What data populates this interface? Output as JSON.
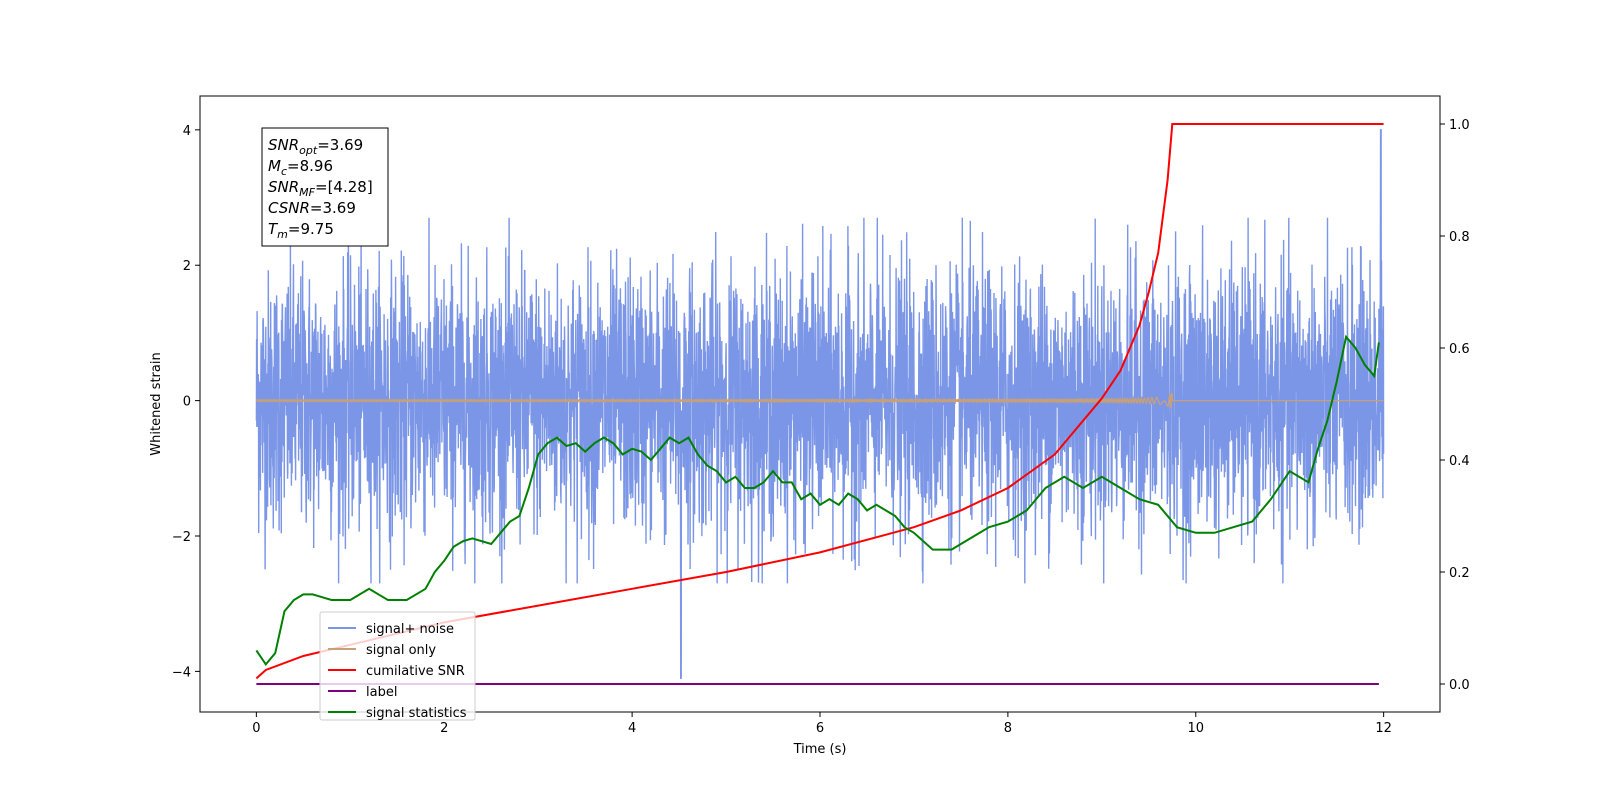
{
  "chart_data": {
    "type": "line",
    "xlabel": "Time (s)",
    "ylabel_left": "Whitened strain",
    "xlim": [
      -0.6,
      12.6
    ],
    "ylim_left": [
      -4.6,
      4.5
    ],
    "ylim_right": [
      -0.05,
      1.05
    ],
    "x_ticks": [
      0,
      2,
      4,
      6,
      8,
      10,
      12
    ],
    "y_ticks_left": [
      -4,
      -2,
      0,
      2,
      4
    ],
    "y_ticks_right": [
      0.0,
      0.2,
      0.4,
      0.6,
      0.8,
      1.0
    ],
    "y_tick_labels_right": [
      "0.0",
      "0.2",
      "0.4",
      "0.6",
      "0.8",
      "1.0"
    ],
    "grid": false,
    "legend_position": "lower-left",
    "info_box": [
      {
        "base": "SNR",
        "sub": "opt",
        "value": "=3.69"
      },
      {
        "base": "M",
        "sub": "c",
        "value": "=8.96"
      },
      {
        "base": "SNR",
        "sub": "MF",
        "value": "=[4.28]"
      },
      {
        "base": "CSNR",
        "sub": "",
        "value": "=3.69"
      },
      {
        "base": "T",
        "sub": "m",
        "value": "=9.75"
      }
    ],
    "series": [
      {
        "name": "signal+ noise",
        "color": "#7b96e6",
        "axis": "left",
        "description": "white noise, x from 0 to 12 s, amplitude mostly within about ±2.3, extremes near -4.1 and +4.0",
        "x_range": [
          0,
          12
        ],
        "typical_amplitude": 2.3,
        "max": 4.0,
        "min": -4.1
      },
      {
        "name": "signal only",
        "color": "#c8a078",
        "axis": "left",
        "description": "chirp growing in amplitude until merger near 9.75 s, then zero",
        "merger_time": 9.75,
        "peak_amplitude": 0.55
      },
      {
        "name": "cumilative SNR",
        "color": "#ff0000",
        "axis": "right",
        "x": [
          0.0,
          0.1,
          0.5,
          1,
          2,
          3,
          4,
          5,
          6,
          7,
          7.5,
          8,
          8.5,
          9,
          9.2,
          9.4,
          9.5,
          9.6,
          9.7,
          9.75,
          12.0
        ],
        "y": [
          0.01,
          0.025,
          0.05,
          0.07,
          0.11,
          0.14,
          0.17,
          0.2,
          0.235,
          0.28,
          0.31,
          0.35,
          0.41,
          0.51,
          0.56,
          0.64,
          0.7,
          0.77,
          0.9,
          1.0,
          1.0
        ]
      },
      {
        "name": "label",
        "color": "#800080",
        "axis": "right",
        "x": [
          0.0,
          11.95
        ],
        "y": [
          0.0,
          0.0
        ]
      },
      {
        "name": "signal statistics",
        "color": "#008000",
        "axis": "right",
        "x": [
          0.0,
          0.1,
          0.2,
          0.3,
          0.4,
          0.5,
          0.6,
          0.7,
          0.8,
          1.0,
          1.2,
          1.4,
          1.6,
          1.8,
          1.9,
          2.0,
          2.1,
          2.2,
          2.3,
          2.5,
          2.6,
          2.7,
          2.8,
          2.9,
          3.0,
          3.1,
          3.2,
          3.3,
          3.4,
          3.5,
          3.6,
          3.7,
          3.8,
          3.9,
          4.0,
          4.1,
          4.2,
          4.3,
          4.4,
          4.5,
          4.6,
          4.7,
          4.8,
          4.9,
          5.0,
          5.1,
          5.2,
          5.3,
          5.4,
          5.5,
          5.6,
          5.7,
          5.8,
          5.9,
          6.0,
          6.1,
          6.2,
          6.3,
          6.4,
          6.5,
          6.6,
          6.7,
          6.8,
          6.9,
          7.0,
          7.2,
          7.4,
          7.5,
          7.6,
          7.8,
          8.0,
          8.2,
          8.4,
          8.6,
          8.8,
          9.0,
          9.2,
          9.4,
          9.6,
          9.8,
          10.0,
          10.2,
          10.4,
          10.6,
          10.8,
          11.0,
          11.2,
          11.3,
          11.4,
          11.5,
          11.6,
          11.7,
          11.8,
          11.9,
          11.95
        ],
        "y": [
          0.06,
          0.035,
          0.055,
          0.13,
          0.15,
          0.16,
          0.16,
          0.155,
          0.15,
          0.15,
          0.17,
          0.15,
          0.15,
          0.17,
          0.2,
          0.22,
          0.245,
          0.255,
          0.26,
          0.25,
          0.27,
          0.29,
          0.3,
          0.35,
          0.41,
          0.43,
          0.44,
          0.425,
          0.43,
          0.415,
          0.43,
          0.44,
          0.43,
          0.41,
          0.42,
          0.415,
          0.4,
          0.42,
          0.44,
          0.43,
          0.44,
          0.41,
          0.39,
          0.38,
          0.36,
          0.37,
          0.35,
          0.35,
          0.36,
          0.38,
          0.36,
          0.36,
          0.33,
          0.34,
          0.32,
          0.33,
          0.32,
          0.34,
          0.33,
          0.31,
          0.32,
          0.31,
          0.3,
          0.28,
          0.27,
          0.24,
          0.24,
          0.25,
          0.26,
          0.28,
          0.29,
          0.31,
          0.35,
          0.37,
          0.35,
          0.37,
          0.35,
          0.33,
          0.32,
          0.28,
          0.27,
          0.27,
          0.28,
          0.29,
          0.33,
          0.38,
          0.36,
          0.42,
          0.47,
          0.54,
          0.62,
          0.6,
          0.57,
          0.55,
          0.61
        ]
      }
    ]
  }
}
